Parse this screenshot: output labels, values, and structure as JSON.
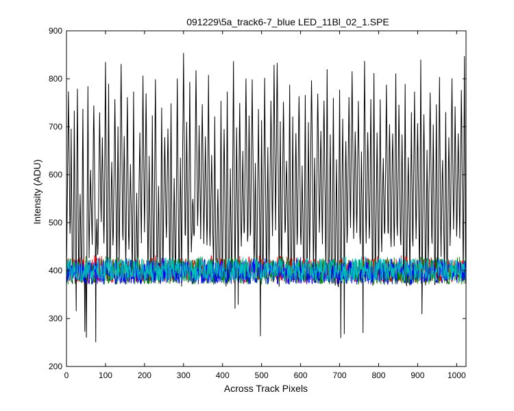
{
  "chart_data": {
    "type": "line",
    "title": "091229\\5a_track6-7_blue LED_11Bl_02_1.SPE",
    "xlabel": "Across Track Pixels",
    "ylabel": "Intensity (ADU)",
    "xlim": [
      0,
      1024
    ],
    "ylim": [
      200,
      900
    ],
    "xticks": [
      0,
      100,
      200,
      300,
      400,
      500,
      600,
      700,
      800,
      900,
      1000
    ],
    "yticks": [
      200,
      300,
      400,
      500,
      600,
      700,
      800,
      900
    ],
    "grid": false,
    "legend": "none",
    "n_points_per_series": 1024,
    "series": [
      {
        "color": "#000000",
        "baseline": 390,
        "noise_low": 245,
        "spike_peak_max": 852,
        "spike_peaks": [
          [
            5,
            780
          ],
          [
            12,
            690
          ],
          [
            20,
            720
          ],
          [
            28,
            790
          ],
          [
            35,
            560
          ],
          [
            42,
            745
          ],
          [
            55,
            770
          ],
          [
            62,
            610
          ],
          [
            70,
            750
          ],
          [
            78,
            520
          ],
          [
            85,
            730
          ],
          [
            92,
            680
          ],
          [
            100,
            835
          ],
          [
            108,
            790
          ],
          [
            116,
            640
          ],
          [
            124,
            760
          ],
          [
            132,
            700
          ],
          [
            140,
            830
          ],
          [
            148,
            690
          ],
          [
            156,
            770
          ],
          [
            164,
            620
          ],
          [
            172,
            780
          ],
          [
            180,
            560
          ],
          [
            188,
            700
          ],
          [
            196,
            800
          ],
          [
            204,
            760
          ],
          [
            212,
            640
          ],
          [
            220,
            720
          ],
          [
            228,
            800
          ],
          [
            236,
            580
          ],
          [
            244,
            740
          ],
          [
            252,
            680
          ],
          [
            260,
            710
          ],
          [
            268,
            760
          ],
          [
            276,
            590
          ],
          [
            284,
            790
          ],
          [
            292,
            650
          ],
          [
            300,
            852
          ],
          [
            308,
            700
          ],
          [
            316,
            790
          ],
          [
            324,
            560
          ],
          [
            332,
            830
          ],
          [
            340,
            700
          ],
          [
            348,
            760
          ],
          [
            356,
            680
          ],
          [
            364,
            800
          ],
          [
            372,
            640
          ],
          [
            380,
            720
          ],
          [
            388,
            580
          ],
          [
            396,
            740
          ],
          [
            404,
            700
          ],
          [
            412,
            780
          ],
          [
            420,
            600
          ],
          [
            428,
            830
          ],
          [
            436,
            690
          ],
          [
            444,
            760
          ],
          [
            452,
            640
          ],
          [
            460,
            790
          ],
          [
            468,
            720
          ],
          [
            476,
            800
          ],
          [
            484,
            610
          ],
          [
            492,
            740
          ],
          [
            500,
            700
          ],
          [
            508,
            790
          ],
          [
            516,
            660
          ],
          [
            524,
            760
          ],
          [
            532,
            820
          ],
          [
            540,
            845
          ],
          [
            548,
            700
          ],
          [
            556,
            760
          ],
          [
            564,
            640
          ],
          [
            572,
            800
          ],
          [
            580,
            720
          ],
          [
            588,
            690
          ],
          [
            596,
            770
          ],
          [
            604,
            620
          ],
          [
            612,
            760
          ],
          [
            620,
            710
          ],
          [
            628,
            810
          ],
          [
            636,
            650
          ],
          [
            644,
            780
          ],
          [
            652,
            700
          ],
          [
            660,
            760
          ],
          [
            668,
            820
          ],
          [
            676,
            690
          ],
          [
            684,
            760
          ],
          [
            692,
            640
          ],
          [
            700,
            790
          ],
          [
            708,
            720
          ],
          [
            716,
            680
          ],
          [
            724,
            770
          ],
          [
            732,
            820
          ],
          [
            740,
            700
          ],
          [
            748,
            760
          ],
          [
            756,
            640
          ],
          [
            764,
            852
          ],
          [
            772,
            700
          ],
          [
            780,
            760
          ],
          [
            788,
            820
          ],
          [
            796,
            690
          ],
          [
            804,
            760
          ],
          [
            812,
            640
          ],
          [
            820,
            780
          ],
          [
            828,
            720
          ],
          [
            836,
            690
          ],
          [
            844,
            800
          ],
          [
            852,
            740
          ],
          [
            860,
            680
          ],
          [
            868,
            790
          ],
          [
            876,
            640
          ],
          [
            884,
            720
          ],
          [
            892,
            760
          ],
          [
            900,
            700
          ],
          [
            908,
            830
          ],
          [
            916,
            740
          ],
          [
            924,
            660
          ],
          [
            932,
            780
          ],
          [
            940,
            700
          ],
          [
            948,
            760
          ],
          [
            956,
            800
          ],
          [
            964,
            640
          ],
          [
            972,
            720
          ],
          [
            980,
            690
          ],
          [
            988,
            800
          ],
          [
            996,
            740
          ],
          [
            1004,
            700
          ],
          [
            1012,
            780
          ],
          [
            1020,
            840
          ]
        ]
      },
      {
        "color": "#ff0000",
        "baseline": 400,
        "noise_low": 375,
        "noise_high": 432
      },
      {
        "color": "#008000",
        "baseline": 398,
        "noise_low": 370,
        "noise_high": 430
      },
      {
        "color": "#0000ff",
        "baseline": 396,
        "noise_low": 372,
        "noise_high": 428
      },
      {
        "color": "#00bfbf",
        "baseline": 402,
        "noise_low": 376,
        "noise_high": 430
      }
    ]
  }
}
